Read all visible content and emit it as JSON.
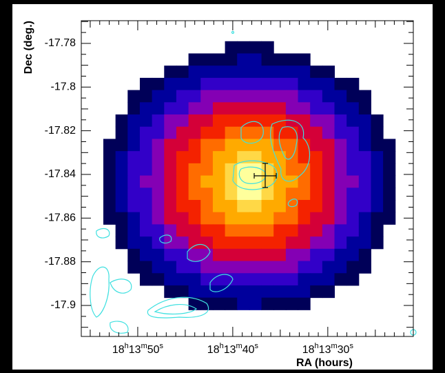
{
  "chart_data": {
    "type": "heatmap",
    "x_label": "RA (hours)",
    "y_label": "Dec (deg.)",
    "xlim": [
      55.94,
      21.0
    ],
    "ylim": [
      -17.9142,
      -17.7696
    ],
    "xticks": [
      {
        "value": 50,
        "label": "18h13m50s"
      },
      {
        "value": 40,
        "label": "18h13m40s"
      },
      {
        "value": 30,
        "label": "18h13m30s"
      }
    ],
    "yticks": [
      -17.78,
      -17.8,
      -17.82,
      -17.84,
      -17.86,
      -17.88,
      -17.9
    ],
    "extent": {
      "x": [
        53.62,
        22.9
      ],
      "y": [
        -17.779,
        -17.902
      ]
    },
    "colors": [
      "#000058",
      "#00009c",
      "#3200c8",
      "#8400b4",
      "#d40038",
      "#f42200",
      "#ff6c00",
      "#ffaa00",
      "#ffd846",
      "#ffff9c"
    ],
    "z": [
      [
        0,
        0,
        0,
        0,
        0,
        0,
        0,
        0,
        0,
        0,
        1,
        1,
        1,
        1,
        0,
        0,
        0,
        0,
        0,
        0,
        0,
        0,
        0,
        0
      ],
      [
        0,
        0,
        0,
        0,
        0,
        0,
        0,
        1,
        1,
        1,
        1,
        2,
        2,
        1,
        1,
        1,
        1,
        0,
        0,
        0,
        0,
        0,
        0,
        0
      ],
      [
        0,
        0,
        0,
        0,
        0,
        1,
        1,
        2,
        2,
        2,
        2,
        2,
        2,
        2,
        2,
        2,
        2,
        1,
        1,
        0,
        0,
        0,
        0,
        0
      ],
      [
        0,
        0,
        0,
        1,
        1,
        2,
        2,
        2,
        3,
        3,
        3,
        3,
        3,
        3,
        3,
        3,
        2,
        2,
        2,
        1,
        1,
        0,
        0,
        0
      ],
      [
        0,
        0,
        1,
        1,
        2,
        2,
        3,
        3,
        4,
        4,
        4,
        4,
        4,
        4,
        4,
        4,
        3,
        3,
        2,
        2,
        1,
        1,
        0,
        0
      ],
      [
        0,
        0,
        1,
        2,
        2,
        3,
        3,
        4,
        4,
        5,
        5,
        5,
        5,
        5,
        5,
        4,
        4,
        3,
        3,
        2,
        2,
        1,
        0,
        0
      ],
      [
        0,
        1,
        2,
        2,
        3,
        4,
        4,
        5,
        5,
        6,
        6,
        6,
        6,
        6,
        6,
        5,
        5,
        4,
        4,
        3,
        2,
        2,
        1,
        0
      ],
      [
        0,
        1,
        2,
        3,
        3,
        4,
        5,
        5,
        6,
        6,
        7,
        7,
        7,
        7,
        6,
        6,
        5,
        5,
        4,
        3,
        3,
        2,
        1,
        0
      ],
      [
        1,
        1,
        2,
        3,
        4,
        5,
        5,
        6,
        7,
        7,
        8,
        8,
        8,
        8,
        7,
        7,
        6,
        5,
        5,
        4,
        3,
        2,
        1,
        1
      ],
      [
        1,
        2,
        3,
        3,
        4,
        5,
        6,
        6,
        7,
        8,
        8,
        9,
        9,
        8,
        8,
        7,
        6,
        6,
        5,
        4,
        3,
        3,
        2,
        1
      ],
      [
        1,
        2,
        3,
        3,
        4,
        5,
        6,
        7,
        7,
        8,
        9,
        10,
        10,
        9,
        8,
        7,
        7,
        6,
        5,
        4,
        3,
        3,
        2,
        1
      ],
      [
        1,
        2,
        3,
        4,
        4,
        5,
        6,
        7,
        8,
        8,
        9,
        10,
        10,
        9,
        8,
        8,
        7,
        6,
        5,
        4,
        4,
        3,
        2,
        1
      ],
      [
        1,
        2,
        3,
        3,
        4,
        5,
        6,
        7,
        7,
        8,
        9,
        10,
        10,
        9,
        8,
        7,
        7,
        6,
        5,
        4,
        3,
        3,
        2,
        1
      ],
      [
        1,
        2,
        3,
        3,
        4,
        5,
        6,
        6,
        7,
        8,
        8,
        9,
        9,
        8,
        8,
        7,
        6,
        6,
        5,
        4,
        3,
        3,
        2,
        1
      ],
      [
        1,
        1,
        2,
        3,
        4,
        5,
        5,
        6,
        7,
        7,
        8,
        8,
        8,
        8,
        7,
        7,
        6,
        5,
        5,
        4,
        3,
        2,
        1,
        1
      ],
      [
        0,
        1,
        2,
        3,
        3,
        4,
        5,
        5,
        6,
        6,
        7,
        7,
        7,
        7,
        6,
        6,
        5,
        5,
        4,
        3,
        3,
        2,
        1,
        0
      ],
      [
        0,
        1,
        2,
        2,
        3,
        4,
        4,
        5,
        5,
        6,
        6,
        6,
        6,
        6,
        6,
        5,
        5,
        4,
        4,
        3,
        2,
        2,
        1,
        0
      ],
      [
        0,
        0,
        1,
        2,
        2,
        3,
        3,
        4,
        4,
        5,
        5,
        5,
        5,
        5,
        5,
        4,
        4,
        3,
        3,
        2,
        2,
        1,
        0,
        0
      ],
      [
        0,
        0,
        1,
        1,
        2,
        2,
        3,
        3,
        4,
        4,
        4,
        4,
        4,
        4,
        4,
        4,
        3,
        3,
        2,
        2,
        1,
        1,
        0,
        0
      ],
      [
        0,
        0,
        0,
        1,
        1,
        2,
        2,
        2,
        3,
        3,
        3,
        3,
        3,
        3,
        3,
        3,
        2,
        2,
        2,
        1,
        1,
        0,
        0,
        0
      ],
      [
        0,
        0,
        0,
        0,
        0,
        1,
        1,
        2,
        2,
        2,
        2,
        2,
        2,
        2,
        2,
        2,
        2,
        1,
        1,
        0,
        0,
        0,
        0,
        0
      ],
      [
        0,
        0,
        0,
        0,
        0,
        0,
        0,
        1,
        1,
        1,
        1,
        2,
        2,
        1,
        1,
        1,
        1,
        0,
        0,
        0,
        0,
        0,
        0,
        0
      ]
    ]
  }
}
